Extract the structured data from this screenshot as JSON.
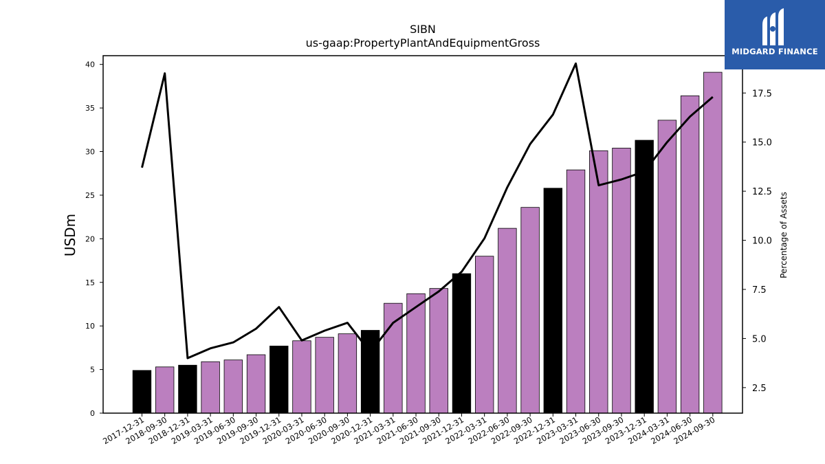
{
  "brand": {
    "name": "MIDGARD FINANCE",
    "bg_color": "#2a5caa"
  },
  "chart_data": {
    "type": "bar",
    "title": "SIBN",
    "subtitle": "us-gaap:PropertyPlantAndEquipmentGross",
    "ylabel": "USDm",
    "y2label": "Percentage of Assets",
    "ylim": [
      0,
      41
    ],
    "y2lim": [
      1.2,
      19.4
    ],
    "yticks": [
      0,
      5,
      10,
      15,
      20,
      25,
      30,
      35,
      40
    ],
    "y2ticks": [
      2.5,
      5.0,
      7.5,
      10.0,
      12.5,
      15.0,
      17.5
    ],
    "categories": [
      "2017-12-31",
      "2018-09-30",
      "2018-12-31",
      "2019-03-31",
      "2019-06-30",
      "2019-09-30",
      "2019-12-31",
      "2020-03-31",
      "2020-06-30",
      "2020-09-30",
      "2020-12-31",
      "2021-03-31",
      "2021-06-30",
      "2021-09-30",
      "2021-12-31",
      "2022-03-31",
      "2022-06-30",
      "2022-09-30",
      "2022-12-31",
      "2023-03-31",
      "2023-06-30",
      "2023-09-30",
      "2023-12-31",
      "2024-03-31",
      "2024-06-30",
      "2024-09-30"
    ],
    "series": [
      {
        "kind": "bar",
        "axis": "left",
        "values": [
          4.9,
          5.3,
          5.5,
          5.9,
          6.1,
          6.7,
          7.7,
          8.3,
          8.7,
          9.1,
          9.5,
          12.6,
          13.7,
          14.3,
          16.0,
          18.0,
          21.2,
          23.6,
          25.8,
          27.9,
          30.1,
          30.4,
          31.3,
          33.6,
          36.4,
          39.1
        ],
        "annual": [
          true,
          false,
          true,
          false,
          false,
          false,
          true,
          false,
          false,
          false,
          true,
          false,
          false,
          false,
          true,
          false,
          false,
          false,
          true,
          false,
          false,
          false,
          true,
          false,
          false,
          false
        ]
      },
      {
        "kind": "line",
        "axis": "right",
        "values": [
          13.7,
          18.5,
          4.0,
          4.5,
          4.8,
          5.5,
          6.6,
          4.9,
          5.4,
          5.8,
          4.3,
          5.8,
          6.6,
          7.4,
          8.4,
          10.1,
          12.7,
          14.9,
          16.4,
          19.0,
          12.8,
          13.1,
          13.5,
          15.0,
          16.3,
          17.3
        ]
      }
    ],
    "colors": {
      "annual_bar": "#000000",
      "quarter_bar": "#bb7fbf",
      "line": "#000000"
    },
    "grid": false,
    "legend": "none"
  }
}
